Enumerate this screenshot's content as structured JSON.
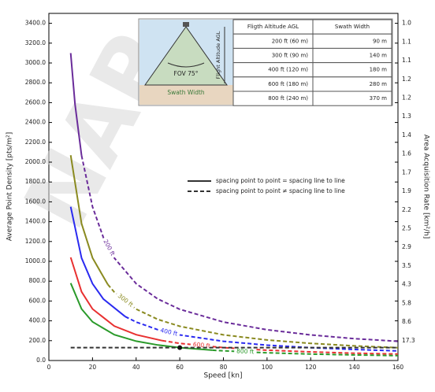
{
  "chart_data": {
    "type": "line",
    "xlabel": "Speed [kn]",
    "ylabel": "Average Point Density [pts/m²]",
    "y2label": "Area Acquisition Rate [km²/h]",
    "xlim": [
      0,
      160
    ],
    "xticks": [
      0,
      20,
      40,
      60,
      80,
      100,
      120,
      140,
      160
    ],
    "ylim": [
      0,
      3500
    ],
    "yticks": [
      {
        "value": 0,
        "label": "0.0"
      },
      {
        "value": 200,
        "label": "200.0"
      },
      {
        "value": 400,
        "label": "400.0"
      },
      {
        "value": 600,
        "label": "600.0"
      },
      {
        "value": 800,
        "label": "800.0"
      },
      {
        "value": 1000,
        "label": "1000.0"
      },
      {
        "value": 1200,
        "label": "1200.0"
      },
      {
        "value": 1400,
        "label": "1400.0"
      },
      {
        "value": 1600,
        "label": "1600.0"
      },
      {
        "value": 1800,
        "label": "1800.0"
      },
      {
        "value": 2000,
        "label": "2000.0"
      },
      {
        "value": 2200,
        "label": "2200.0"
      },
      {
        "value": 2400,
        "label": "2400.0"
      },
      {
        "value": 2600,
        "label": "2600.0"
      },
      {
        "value": 2800,
        "label": "2800.0"
      },
      {
        "value": 3000,
        "label": "3000.0"
      },
      {
        "value": 3200,
        "label": "3200.0"
      },
      {
        "value": 3400,
        "label": "3400.0"
      }
    ],
    "y2_tick_labels": [
      "17.3",
      "8.6",
      "5.8",
      "4.3",
      "3.5",
      "2.9",
      "2.5",
      "2.2",
      "1.9",
      "1.7",
      "1.6",
      "1.4",
      "1.3",
      "1.2",
      "1.2",
      "1.1",
      "1.1",
      "1.0"
    ],
    "series": [
      {
        "color": "#6a2c9a",
        "dash": false,
        "x": [
          10,
          12,
          15
        ],
        "values": [
          3100,
          2583,
          2067
        ]
      },
      {
        "color": "#6a2c9a",
        "dash": true,
        "label": "200 ft",
        "x": [
          15,
          20,
          25,
          30,
          40,
          50,
          60,
          80,
          100,
          120,
          140,
          160
        ],
        "values": [
          2067,
          1550,
          1240,
          1033,
          775,
          620,
          517,
          388,
          310,
          258,
          221,
          194
        ]
      },
      {
        "color": "#8a8a20",
        "dash": false,
        "x": [
          10,
          15,
          20,
          27
        ],
        "values": [
          2070,
          1380,
          1035,
          767
        ]
      },
      {
        "color": "#8a8a20",
        "dash": true,
        "label": "300 ft",
        "x": [
          27,
          30,
          40,
          50,
          60,
          80,
          100,
          120,
          140,
          160
        ],
        "values": [
          767,
          690,
          518,
          414,
          345,
          259,
          207,
          173,
          148,
          129
        ]
      },
      {
        "color": "#2a2af0",
        "dash": false,
        "x": [
          10,
          15,
          20,
          25,
          35
        ],
        "values": [
          1550,
          1033,
          775,
          620,
          443
        ]
      },
      {
        "color": "#2a2af0",
        "dash": true,
        "label": "400 ft",
        "x": [
          35,
          40,
          50,
          60,
          80,
          100,
          120,
          140,
          160
        ],
        "values": [
          443,
          388,
          310,
          258,
          194,
          155,
          129,
          111,
          97
        ]
      },
      {
        "color": "#e83030",
        "dash": false,
        "x": [
          10,
          15,
          20,
          30,
          40,
          52
        ],
        "values": [
          1040,
          693,
          520,
          347,
          260,
          200
        ]
      },
      {
        "color": "#e83030",
        "dash": true,
        "label": "600 ft",
        "x": [
          52,
          60,
          80,
          100,
          120,
          140,
          160
        ],
        "values": [
          200,
          173,
          130,
          104,
          87,
          74,
          65
        ]
      },
      {
        "color": "#2a9a2a",
        "dash": false,
        "x": [
          10,
          15,
          20,
          30,
          40,
          50,
          60,
          75
        ],
        "values": [
          780,
          520,
          390,
          260,
          195,
          156,
          130,
          104
        ]
      },
      {
        "color": "#2a9a2a",
        "dash": true,
        "label": "800 ft",
        "x": [
          75,
          80,
          100,
          120,
          140,
          160
        ],
        "values": [
          104,
          98,
          78,
          65,
          56,
          49
        ]
      },
      {
        "color": "#333333",
        "dash": true,
        "x": [
          10,
          160
        ],
        "values": [
          130,
          130
        ]
      }
    ],
    "marker": {
      "x": 60,
      "y": 130,
      "color": "#111111"
    },
    "legend": [
      {
        "dash": false,
        "label": "spacing point to point = spacing line to line"
      },
      {
        "dash": true,
        "label": "spacing point to point ≠ spacing line to line"
      }
    ],
    "watermark": "NAP"
  },
  "inset": {
    "fov": "FOV 75°",
    "swath": "Swath Width",
    "altitude": "Flight Altitude AGL",
    "table": {
      "header": [
        "Fligth Altitude AGL",
        "Swath Width"
      ],
      "rows": [
        [
          "200 ft (60 m)",
          "90 m"
        ],
        [
          "300 ft (90 m)",
          "140 m"
        ],
        [
          "400 ft (120 m)",
          "180 m"
        ],
        [
          "600 ft (180 m)",
          "280 m"
        ],
        [
          "800 ft (240 m)",
          "370 m"
        ]
      ]
    }
  }
}
